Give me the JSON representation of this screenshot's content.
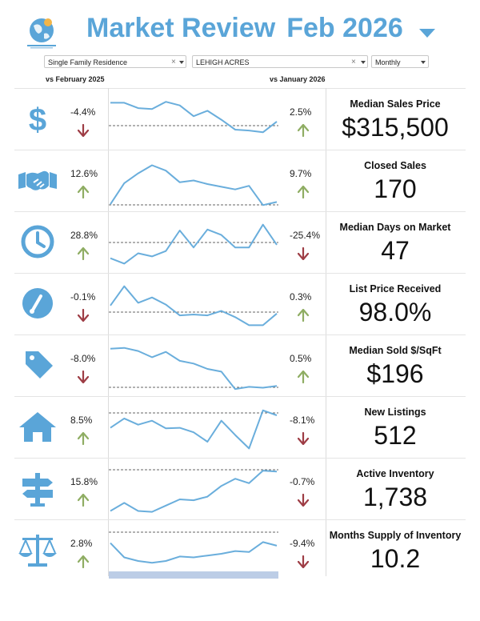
{
  "header": {
    "title": "Market Review",
    "month": "Feb 2026",
    "logo_name": "Florida globe logo"
  },
  "filters": {
    "property_type": "Single Family Residence",
    "area": "LEHIGH ACRES",
    "period": "Monthly",
    "clear_glyph": "×"
  },
  "comparisons": {
    "year_label": "vs February 2025",
    "month_label": "vs January 2026"
  },
  "colors": {
    "accent": "#5aa5d8",
    "up": "#8fad63",
    "down": "#9e3d45",
    "line": "#6aaedc",
    "band": "#bccde6"
  },
  "metrics": [
    {
      "label": "Median Sales Price",
      "value": "$315,500",
      "yoy": "-4.4%",
      "yoy_dir": "down",
      "mom": "2.5%",
      "mom_dir": "up",
      "icon": "dollar-icon",
      "trend": [
        0.94,
        0.94,
        0.82,
        0.8,
        0.96,
        0.88,
        0.64,
        0.76,
        0.56,
        0.34,
        0.32,
        0.28,
        0.52
      ]
    },
    {
      "label": "Closed Sales",
      "value": "170",
      "yoy": "12.6%",
      "yoy_dir": "up",
      "mom": "9.7%",
      "mom_dir": "up",
      "icon": "handshake-icon",
      "trend": [
        0.05,
        0.52,
        0.74,
        0.92,
        0.8,
        0.54,
        0.58,
        0.5,
        0.44,
        0.38,
        0.46,
        0.03,
        0.1
      ]
    },
    {
      "label": "Median Days on Market",
      "value": "47",
      "yoy": "28.8%",
      "yoy_dir": "up",
      "mom": "-25.4%",
      "mom_dir": "down",
      "icon": "clock-icon",
      "trend": [
        0.22,
        0.1,
        0.33,
        0.26,
        0.38,
        0.84,
        0.46,
        0.86,
        0.74,
        0.46,
        0.46,
        0.97,
        0.52
      ]
    },
    {
      "label": "List Price Received",
      "value": "98.0%",
      "yoy": "-0.1%",
      "yoy_dir": "down",
      "mom": "0.3%",
      "mom_dir": "up",
      "icon": "gauge-icon",
      "trend": [
        0.54,
        0.97,
        0.6,
        0.72,
        0.56,
        0.32,
        0.34,
        0.32,
        0.42,
        0.28,
        0.1,
        0.1,
        0.36
      ]
    },
    {
      "label": "Median Sold $/SqFt",
      "value": "$196",
      "yoy": "-8.0%",
      "yoy_dir": "down",
      "mom": "0.5%",
      "mom_dir": "up",
      "icon": "price-tag-icon",
      "trend": [
        0.95,
        0.97,
        0.9,
        0.76,
        0.88,
        0.68,
        0.62,
        0.5,
        0.44,
        0.05,
        0.1,
        0.08,
        0.12
      ]
    },
    {
      "label": "New Listings",
      "value": "512",
      "yoy": "8.5%",
      "yoy_dir": "up",
      "mom": "-8.1%",
      "mom_dir": "down",
      "icon": "house-icon",
      "trend": [
        0.56,
        0.77,
        0.63,
        0.72,
        0.55,
        0.56,
        0.46,
        0.25,
        0.72,
        0.4,
        0.1,
        0.95,
        0.84
      ]
    },
    {
      "label": "Active Inventory",
      "value": "1,738",
      "yoy": "15.8%",
      "yoy_dir": "up",
      "mom": "-0.7%",
      "mom_dir": "down",
      "icon": "signpost-icon",
      "trend": [
        0.08,
        0.26,
        0.08,
        0.06,
        0.2,
        0.34,
        0.32,
        0.4,
        0.64,
        0.8,
        0.7,
        0.98,
        0.96
      ]
    },
    {
      "label": "Months Supply of Inventory",
      "value": "10.2",
      "yoy": "2.8%",
      "yoy_dir": "up",
      "mom": "-9.4%",
      "mom_dir": "down",
      "icon": "scales-icon",
      "trend": [
        0.74,
        0.42,
        0.34,
        0.3,
        0.34,
        0.44,
        0.42,
        0.46,
        0.5,
        0.56,
        0.54,
        0.76,
        0.68
      ]
    }
  ]
}
